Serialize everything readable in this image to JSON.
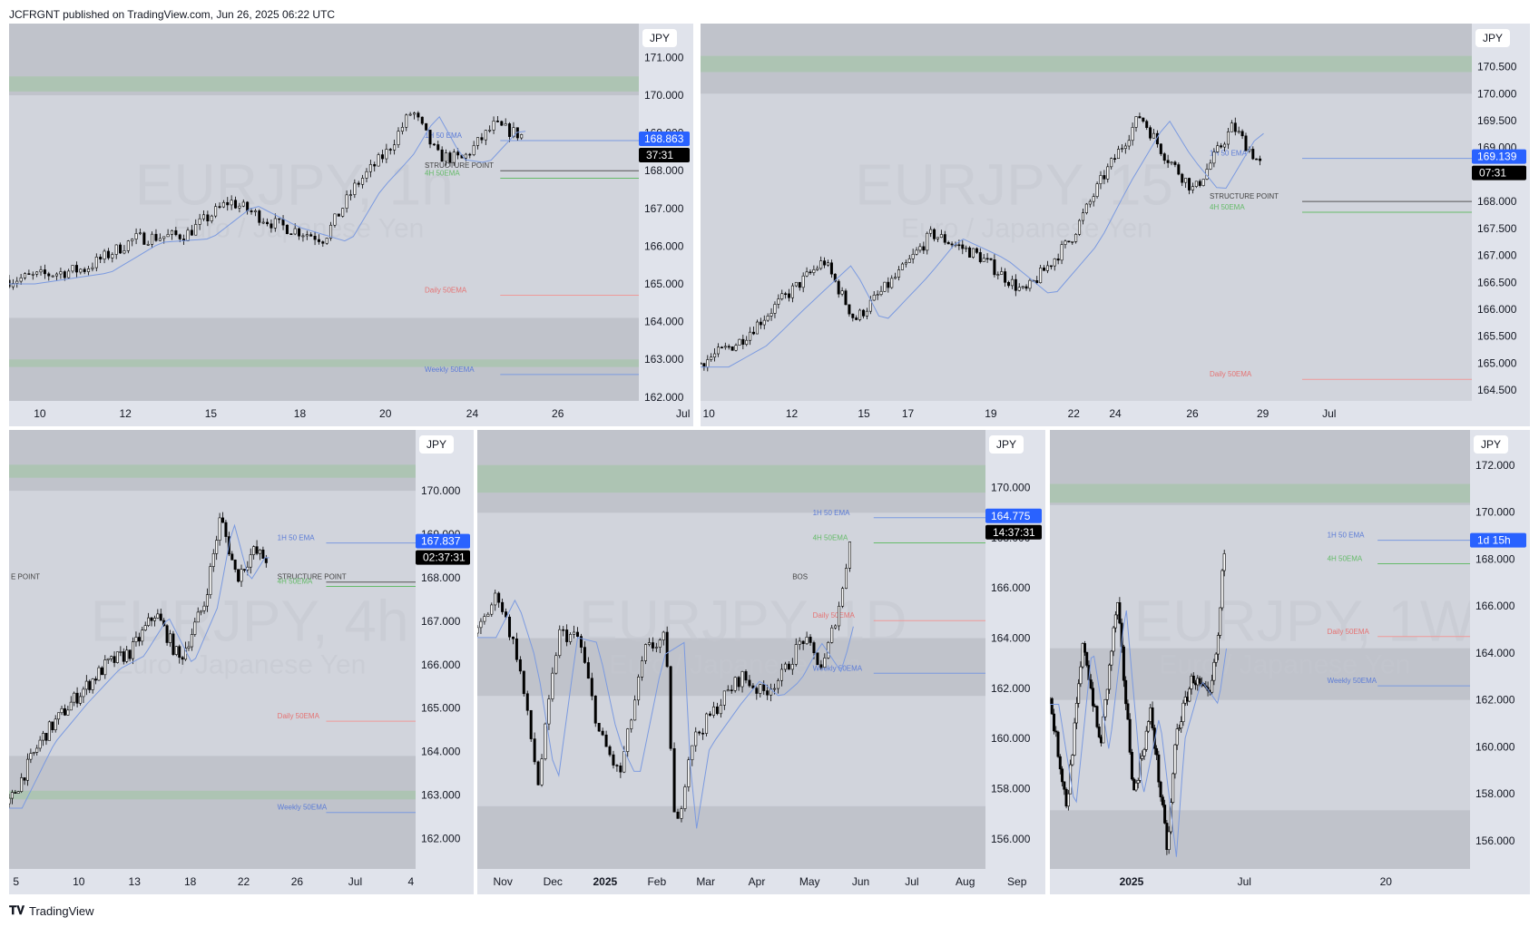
{
  "header": {
    "publisher_line": "JCFRGNT published on TradingView.com, Jun 26, 2025 06:22 UTC"
  },
  "footer": {
    "brand": "TradingView"
  },
  "colors": {
    "bg": "#d1d4dc",
    "zone_grey": "#b2b5be",
    "zone_green": "#a5c4a8",
    "ema_blue": "#7b9ae0",
    "ema_green": "#66bb6a",
    "ema_red": "#ef9a9a",
    "price_blue": "#2962ff",
    "candle": "#000000"
  },
  "chart_data": [
    {
      "type": "candlestick",
      "symbol": "EURJPY",
      "interval": "1h",
      "watermark_symbol": "EURJPY, 1h",
      "watermark_name": "Euro / Japanese Yen",
      "currency": "JPY",
      "y_range": [
        161.9,
        171.9
      ],
      "y_ticks": [
        "171.000",
        "170.000",
        "169.000",
        "168.000",
        "167.000",
        "166.000",
        "165.000",
        "164.000",
        "163.000",
        "162.000"
      ],
      "x_ticks": [
        "10",
        "12",
        "15",
        "18",
        "20",
        "24",
        "26",
        "Jul"
      ],
      "last_price": "168.863",
      "countdown": "37:31",
      "annotations": [
        "1H 50 EMA",
        "STRUCTURE POINT",
        "4H 50EMA",
        "Daily 50EMA",
        "Weekly 50EMA"
      ],
      "levels": {
        "ema_1h": 168.8,
        "structure": 168.0,
        "ema_4h": 167.8,
        "ema_daily": 164.7,
        "ema_weekly": 162.6
      }
    },
    {
      "type": "candlestick",
      "symbol": "EURJPY",
      "interval": "15",
      "watermark_symbol": "EURJPY, 15",
      "watermark_name": "Euro / Japanese Yen",
      "currency": "JPY",
      "y_range": [
        164.3,
        171.3
      ],
      "y_ticks": [
        "170.500",
        "170.000",
        "169.500",
        "169.000",
        "168.500",
        "168.000",
        "167.500",
        "167.000",
        "166.500",
        "166.000",
        "165.500",
        "165.000",
        "164.500"
      ],
      "x_ticks": [
        "10",
        "12",
        "15",
        "17",
        "19",
        "22",
        "24",
        "26",
        "29",
        "Jul"
      ],
      "last_price": "169.139",
      "countdown": "07:31",
      "annotations": [
        "1H 50 EMA",
        "STRUCTURE POINT",
        "4H 50EMA",
        "Daily 50EMA"
      ],
      "levels": {
        "ema_1h": 168.8,
        "structure": 168.0,
        "ema_4h": 167.8,
        "ema_daily": 164.7
      }
    },
    {
      "type": "candlestick",
      "symbol": "EURJPY",
      "interval": "4h",
      "watermark_symbol": "EURJPY, 4h",
      "watermark_name": "Euro / Japanese Yen",
      "currency": "JPY",
      "y_range": [
        161.3,
        171.4
      ],
      "y_ticks": [
        "170.000",
        "169.000",
        "168.000",
        "167.000",
        "166.000",
        "165.000",
        "164.000",
        "163.000",
        "162.000"
      ],
      "x_ticks": [
        "5",
        "10",
        "13",
        "18",
        "22",
        "26",
        "Jul",
        "4"
      ],
      "last_price": "167.837",
      "countdown": "02:37:31",
      "annotations": [
        "1H 50 EMA",
        "STRUCTURE POINT",
        "4H 50EMA",
        "Daily 50EMA",
        "Weekly 50EMA",
        "E POINT"
      ],
      "levels": {
        "ema_1h": 168.8,
        "structure": 167.9,
        "ema_4h": 167.8,
        "ema_daily": 164.7,
        "ema_weekly": 162.6
      }
    },
    {
      "type": "candlestick",
      "symbol": "EURJPY",
      "interval": "1D",
      "watermark_symbol": "EURJPY, 1D",
      "watermark_name": "Euro / Japanese Yen",
      "currency": "JPY",
      "y_range": [
        154.8,
        172.3
      ],
      "y_ticks": [
        "170.000",
        "168.000",
        "166.000",
        "164.000",
        "162.000",
        "160.000",
        "158.000",
        "156.000"
      ],
      "x_ticks": [
        "Nov",
        "Dec",
        "2025",
        "Feb",
        "Mar",
        "Apr",
        "May",
        "Jun",
        "Jul",
        "Aug",
        "Sep"
      ],
      "last_price": "164.775",
      "countdown": "14:37:31",
      "annotations": [
        "1H 50 EMA",
        "4H 50EMA",
        "BOS",
        "Daily 50EMA",
        "Weekly 50EMA"
      ],
      "levels": {
        "ema_1h": 168.8,
        "ema_4h": 167.8,
        "ema_daily": 164.7,
        "ema_weekly": 162.6
      }
    },
    {
      "type": "candlestick",
      "symbol": "EURJPY",
      "interval": "1W",
      "watermark_symbol": "EURJPY, 1W",
      "watermark_name": "Euro / Japanese Yen",
      "currency": "JPY",
      "y_range": [
        154.8,
        173.5
      ],
      "y_ticks": [
        "172.000",
        "170.000",
        "168.000",
        "166.000",
        "164.000",
        "162.000",
        "160.000",
        "158.000",
        "156.000"
      ],
      "x_ticks": [
        "2025",
        "Jul",
        "20"
      ],
      "last_price": "",
      "countdown": "1d 15h",
      "annotations": [
        "1H 50 EMA",
        "4H 50EMA",
        "Daily 50EMA",
        "Weekly 50EMA"
      ],
      "levels": {
        "ema_1h": 168.8,
        "ema_4h": 167.8,
        "ema_daily": 164.7,
        "ema_weekly": 162.6
      }
    }
  ]
}
